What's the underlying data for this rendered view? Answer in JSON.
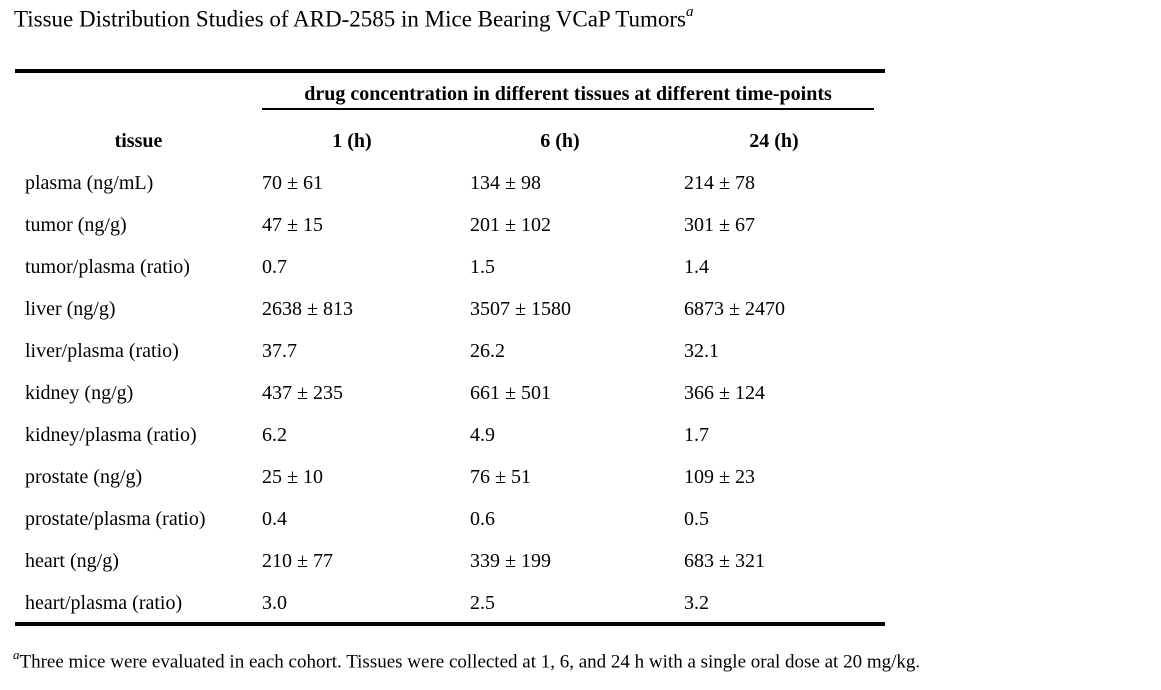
{
  "title": {
    "text": "Tissue Distribution Studies of ARD-2585 in Mice Bearing VCaP Tumors",
    "superscript": "a"
  },
  "table": {
    "span_header": "drug concentration in different tissues at different time-points",
    "columns": {
      "tissue": "tissue",
      "t1": "1 (h)",
      "t6": "6 (h)",
      "t24": "24 (h)"
    },
    "rows": [
      {
        "tissue": "plasma (ng/mL)",
        "t1": "70 ± 61",
        "t6": "134 ± 98",
        "t24": "214 ± 78"
      },
      {
        "tissue": "tumor (ng/g)",
        "t1": "47 ± 15",
        "t6": "201 ± 102",
        "t24": "301 ± 67"
      },
      {
        "tissue": "tumor/plasma (ratio)",
        "t1": "0.7",
        "t6": "1.5",
        "t24": "1.4"
      },
      {
        "tissue": "liver (ng/g)",
        "t1": "2638 ± 813",
        "t6": "3507 ± 1580",
        "t24": "6873 ± 2470"
      },
      {
        "tissue": "liver/plasma (ratio)",
        "t1": "37.7",
        "t6": "26.2",
        "t24": "32.1"
      },
      {
        "tissue": "kidney (ng/g)",
        "t1": "437 ± 235",
        "t6": "661 ± 501",
        "t24": "366 ± 124"
      },
      {
        "tissue": "kidney/plasma (ratio)",
        "t1": "6.2",
        "t6": "4.9",
        "t24": "1.7"
      },
      {
        "tissue": "prostate (ng/g)",
        "t1": "25 ± 10",
        "t6": "76 ± 51",
        "t24": "109 ± 23"
      },
      {
        "tissue": "prostate/plasma (ratio)",
        "t1": "0.4",
        "t6": "0.6",
        "t24": "0.5"
      },
      {
        "tissue": "heart (ng/g)",
        "t1": "210 ± 77",
        "t6": "339 ± 199",
        "t24": "683 ± 321"
      },
      {
        "tissue": "heart/plasma (ratio)",
        "t1": "3.0",
        "t6": "2.5",
        "t24": "3.2"
      }
    ]
  },
  "footnote": {
    "marker": "a",
    "text": "Three mice were evaluated in each cohort. Tissues were collected at 1, 6, and 24 h with a single oral dose at 20 mg/kg."
  },
  "colors": {
    "text": "#000000",
    "background": "#ffffff",
    "rule": "#000000"
  }
}
